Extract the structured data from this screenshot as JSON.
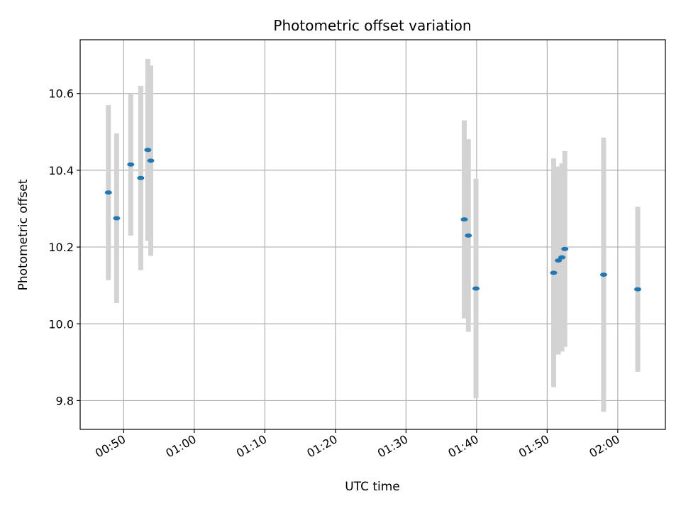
{
  "chart_data": {
    "type": "scatter",
    "title": "Photometric offset variation",
    "xlabel": "UTC time",
    "ylabel": "Photometric offset",
    "x_ticks": [
      "00:50",
      "01:00",
      "01:10",
      "01:20",
      "01:30",
      "01:40",
      "01:50",
      "02:00"
    ],
    "y_ticks": [
      9.8,
      10.0,
      10.2,
      10.4,
      10.6
    ],
    "xlim": [
      "00:43:50",
      "02:06:45"
    ],
    "ylim": [
      9.725,
      10.74
    ],
    "grid": true,
    "errorbar_color": "#d3d3d3",
    "marker_color": "#1f77b4",
    "points": [
      {
        "x": "00:47:50",
        "y": 10.342,
        "yerr": 0.228
      },
      {
        "x": "00:49:00",
        "y": 10.275,
        "yerr": 0.221
      },
      {
        "x": "00:51:00",
        "y": 10.415,
        "yerr": 0.185
      },
      {
        "x": "00:52:25",
        "y": 10.38,
        "yerr": 0.24
      },
      {
        "x": "00:53:25",
        "y": 10.453,
        "yerr": 0.237
      },
      {
        "x": "00:53:50",
        "y": 10.425,
        "yerr": 0.248
      },
      {
        "x": "01:38:15",
        "y": 10.272,
        "yerr": 0.258
      },
      {
        "x": "01:38:50",
        "y": 10.23,
        "yerr": 0.251
      },
      {
        "x": "01:39:55",
        "y": 10.092,
        "yerr": 0.286
      },
      {
        "x": "01:50:55",
        "y": 10.133,
        "yerr": 0.298
      },
      {
        "x": "01:51:35",
        "y": 10.165,
        "yerr": 0.245
      },
      {
        "x": "01:52:05",
        "y": 10.173,
        "yerr": 0.245
      },
      {
        "x": "01:52:30",
        "y": 10.195,
        "yerr": 0.255
      },
      {
        "x": "01:58:00",
        "y": 10.128,
        "yerr": 0.357
      },
      {
        "x": "02:02:50",
        "y": 10.09,
        "yerr": 0.215
      }
    ]
  }
}
